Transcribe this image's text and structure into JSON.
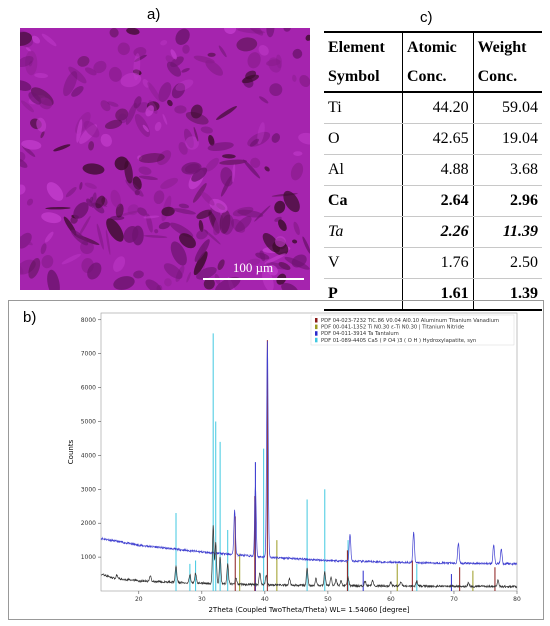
{
  "panels": {
    "a": "a)",
    "b": "b)",
    "c": "c)"
  },
  "micrograph": {
    "scale_label": "100 µm"
  },
  "table": {
    "headers": [
      [
        "Element",
        "Atomic",
        "Weight"
      ],
      [
        "Symbol",
        "Conc.",
        "Conc."
      ]
    ],
    "rows": [
      {
        "el": "Ti",
        "atomic": "44.20",
        "weight": "59.04",
        "style": "normal"
      },
      {
        "el": "O",
        "atomic": "42.65",
        "weight": "19.04",
        "style": "normal"
      },
      {
        "el": "Al",
        "atomic": "4.88",
        "weight": "3.68",
        "style": "normal"
      },
      {
        "el": "Ca",
        "atomic": "2.64",
        "weight": "2.96",
        "style": "bold"
      },
      {
        "el": "Ta",
        "atomic": "2.26",
        "weight": "11.39",
        "style": "ital"
      },
      {
        "el": "V",
        "atomic": "1.76",
        "weight": "2.50",
        "style": "normal"
      },
      {
        "el": "P",
        "atomic": "1.61",
        "weight": "1.39",
        "style": "bold"
      }
    ]
  },
  "chart_data": {
    "type": "line",
    "xlabel": "2Theta (Coupled TwoTheta/Theta) WL= 1.54060  [degree]",
    "ylabel": "Counts",
    "xlim": [
      14,
      80
    ],
    "ylim": [
      0,
      8200
    ],
    "xticks": [
      20,
      30,
      40,
      50,
      60,
      70,
      80
    ],
    "yticks": [
      1000,
      2000,
      3000,
      4000,
      5000,
      6000,
      7000,
      8000
    ],
    "legend_position": "top-right",
    "legend": [
      {
        "label": "PDF 04-023-7232 TiC.86 V0.04 Al0.10 Aluminum Titanium Vanadium",
        "color": "#8b1a1a"
      },
      {
        "label": "PDF 00-041-1352 Ti N0.30 ε-Ti N0.30 | Titanium Nitride",
        "color": "#9a9a20"
      },
      {
        "label": "PDF 04-011-3914 Ta Tantalum",
        "color": "#2a2acc"
      },
      {
        "label": "PDF 01-089-4405 Ca5 ( P O4 )3 ( O H ) Hydroxylapatite, syn",
        "color": "#40c8e0"
      }
    ],
    "series": [
      {
        "color": "#4040d0",
        "baseline": [
          [
            14,
            1550
          ],
          [
            20,
            1350
          ],
          [
            30,
            1150
          ],
          [
            40,
            1000
          ],
          [
            50,
            900
          ],
          [
            60,
            850
          ],
          [
            70,
            820
          ],
          [
            80,
            800
          ]
        ],
        "peaks": [
          [
            35.2,
            1300
          ],
          [
            38.5,
            2100
          ],
          [
            40.4,
            6350
          ],
          [
            53.5,
            800
          ],
          [
            63.6,
            900
          ],
          [
            70.7,
            600
          ],
          [
            76.3,
            550
          ],
          [
            77.5,
            450
          ]
        ]
      },
      {
        "color": "#333333",
        "baseline": [
          [
            14,
            500
          ],
          [
            16,
            380
          ],
          [
            20,
            300
          ],
          [
            30,
            230
          ],
          [
            40,
            180
          ],
          [
            50,
            160
          ],
          [
            60,
            150
          ],
          [
            70,
            140
          ],
          [
            80,
            130
          ]
        ],
        "peaks": [
          [
            16.5,
            100
          ],
          [
            21.8,
            180
          ],
          [
            25.9,
            500
          ],
          [
            28.1,
            250
          ],
          [
            29.0,
            300
          ],
          [
            31.8,
            1700
          ],
          [
            32.2,
            1200
          ],
          [
            32.9,
            800
          ],
          [
            34.1,
            600
          ],
          [
            35.4,
            200
          ],
          [
            39.2,
            350
          ],
          [
            40.2,
            300
          ],
          [
            43.9,
            200
          ],
          [
            46.7,
            500
          ],
          [
            48.1,
            200
          ],
          [
            49.5,
            400
          ],
          [
            50.5,
            250
          ],
          [
            51.3,
            200
          ],
          [
            52.1,
            150
          ],
          [
            53.2,
            250
          ],
          [
            55.9,
            150
          ],
          [
            57.1,
            150
          ],
          [
            60.0,
            120
          ],
          [
            61.6,
            130
          ],
          [
            64.1,
            150
          ],
          [
            72.3,
            100
          ],
          [
            77.0,
            200
          ]
        ]
      }
    ],
    "reference_sticks": [
      {
        "color": "#40c8e0",
        "x": [
          25.9,
          28.1,
          29.0,
          31.8,
          32.2,
          32.9,
          34.1,
          39.8,
          46.7,
          49.5,
          53.2,
          64.1
        ],
        "y": [
          2300,
          800,
          900,
          7600,
          5000,
          4400,
          1800,
          4200,
          2700,
          3000,
          1500,
          800
        ]
      },
      {
        "color": "#2a2acc",
        "x": [
          38.5,
          55.6,
          69.6
        ],
        "y": [
          3800,
          600,
          500
        ]
      },
      {
        "color": "#8b1a1a",
        "x": [
          35.3,
          38.4,
          40.4,
          53.1,
          63.4,
          70.9,
          76.5
        ],
        "y": [
          2200,
          2800,
          7400,
          1200,
          900,
          700,
          700
        ]
      },
      {
        "color": "#9a9a20",
        "x": [
          36.0,
          41.9,
          61.0,
          73.0
        ],
        "y": [
          1100,
          1500,
          800,
          600
        ]
      }
    ]
  }
}
